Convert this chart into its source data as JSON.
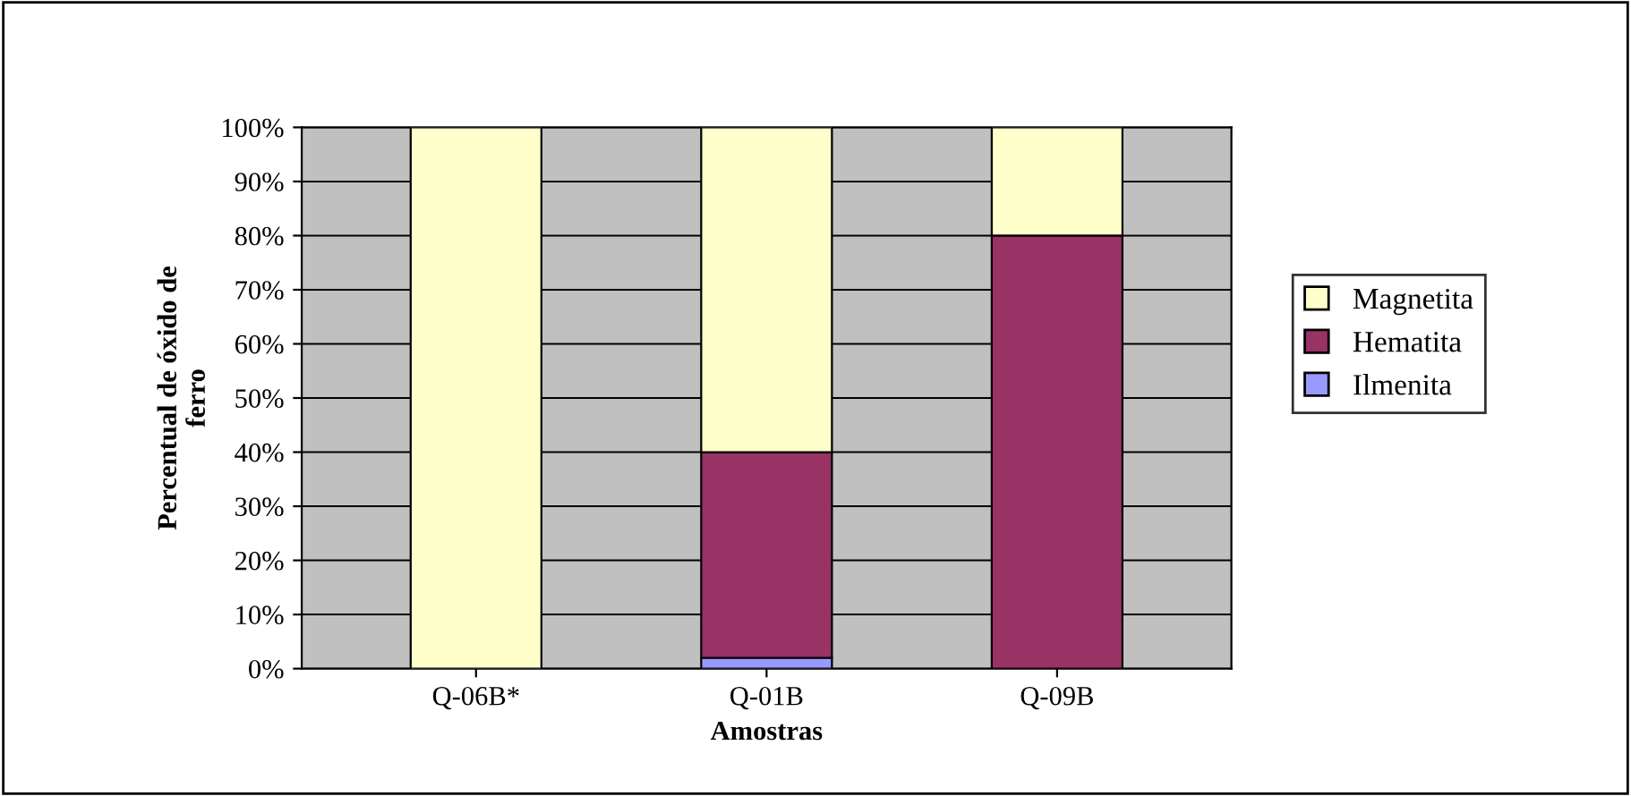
{
  "chart_data": {
    "type": "bar",
    "stacked": true,
    "xlabel": "Amostras",
    "ylabel": "Percentual de óxido de\nferro",
    "categories": [
      "Q-06B*",
      "Q-01B",
      "Q-09B"
    ],
    "series": [
      {
        "name": "Ilmenita",
        "color": "#9999ff",
        "values": [
          0,
          2,
          0
        ]
      },
      {
        "name": "Hematita",
        "color": "#993366",
        "values": [
          0,
          38,
          80
        ]
      },
      {
        "name": "Magnetita",
        "color": "#ffffcc",
        "values": [
          100,
          60,
          20
        ]
      }
    ],
    "ylim": [
      0,
      100
    ],
    "yticks": [
      {
        "value": 0,
        "label": "0%"
      },
      {
        "value": 10,
        "label": "10%"
      },
      {
        "value": 20,
        "label": "20%"
      },
      {
        "value": 30,
        "label": "30%"
      },
      {
        "value": 40,
        "label": "40%"
      },
      {
        "value": 50,
        "label": "50%"
      },
      {
        "value": 60,
        "label": "60%"
      },
      {
        "value": 70,
        "label": "70%"
      },
      {
        "value": 80,
        "label": "80%"
      },
      {
        "value": 90,
        "label": "90%"
      },
      {
        "value": 100,
        "label": "100%"
      }
    ],
    "grid": "y",
    "legend": "right"
  }
}
